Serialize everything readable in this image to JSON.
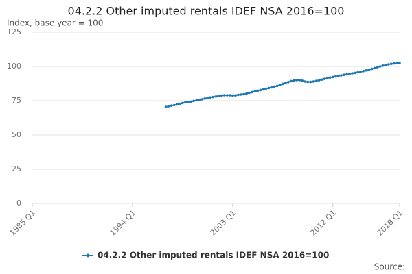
{
  "chart_data": {
    "type": "line",
    "title": "04.2.2 Other imputed rentals IDEF NSA 2016=100",
    "subtitle": "Index, base year = 100",
    "source_label": "Source:",
    "categories": [
      "1985 Q1",
      null,
      null,
      null,
      null,
      null,
      null,
      null,
      null,
      null,
      null,
      null,
      null,
      null,
      null,
      null,
      null,
      null,
      null,
      null,
      null,
      null,
      null,
      null,
      null,
      null,
      null,
      null,
      null,
      null,
      null,
      null,
      null,
      null,
      null,
      null,
      "1994 Q1",
      null,
      null,
      null,
      null,
      null,
      null,
      null,
      null,
      null,
      null,
      null,
      null,
      null,
      null,
      null,
      null,
      null,
      null,
      null,
      null,
      null,
      null,
      null,
      null,
      null,
      null,
      null,
      null,
      null,
      null,
      null,
      null,
      null,
      null,
      null,
      "2003 Q1",
      null,
      null,
      null,
      null,
      null,
      null,
      null,
      null,
      null,
      null,
      null,
      null,
      null,
      null,
      null,
      null,
      null,
      null,
      null,
      null,
      null,
      null,
      null,
      null,
      null,
      null,
      null,
      null,
      null,
      null,
      null,
      null,
      null,
      null,
      null,
      "2012 Q1",
      null,
      null,
      null,
      null,
      null,
      null,
      null,
      null,
      null,
      null,
      null,
      null,
      null,
      null,
      null,
      null,
      null,
      null,
      null,
      null,
      null,
      null,
      null,
      "2018 Q1"
    ],
    "series": [
      {
        "name": "04.2.2 Other imputed rentals IDEF NSA 2016=100",
        "color": "#1f78b4",
        "values": [
          null,
          null,
          null,
          null,
          null,
          null,
          null,
          null,
          null,
          null,
          null,
          null,
          null,
          null,
          null,
          null,
          null,
          null,
          null,
          null,
          null,
          null,
          null,
          null,
          null,
          null,
          null,
          null,
          null,
          null,
          null,
          null,
          null,
          null,
          null,
          null,
          null,
          null,
          null,
          null,
          null,
          null,
          null,
          null,
          null,
          null,
          null,
          null,
          70.5,
          71.0,
          71.4,
          71.8,
          72.2,
          72.7,
          73.3,
          73.9,
          74.0,
          74.3,
          74.8,
          75.3,
          75.6,
          76.0,
          76.6,
          77.0,
          77.4,
          77.7,
          78.1,
          78.6,
          78.8,
          79.0,
          79.0,
          79.0,
          78.8,
          78.9,
          79.3,
          79.5,
          79.7,
          80.2,
          80.8,
          81.3,
          81.8,
          82.3,
          82.8,
          83.3,
          83.8,
          84.3,
          84.8,
          85.3,
          85.8,
          86.5,
          87.3,
          88.0,
          88.6,
          89.3,
          89.8,
          90.0,
          90.0,
          89.6,
          89.0,
          88.7,
          88.7,
          89.0,
          89.4,
          89.9,
          90.4,
          90.9,
          91.4,
          91.9,
          92.3,
          92.7,
          93.1,
          93.5,
          93.9,
          94.2,
          94.6,
          95.0,
          95.3,
          95.7,
          96.1,
          96.6,
          97.1,
          97.6,
          98.2,
          98.8,
          99.4,
          100.0,
          100.6,
          101.1,
          101.5,
          101.9,
          102.2,
          102.4,
          102.5
        ]
      }
    ],
    "ylim": [
      0,
      125
    ],
    "yticks": [
      0,
      25,
      50,
      75,
      100,
      125
    ],
    "grid": true
  }
}
